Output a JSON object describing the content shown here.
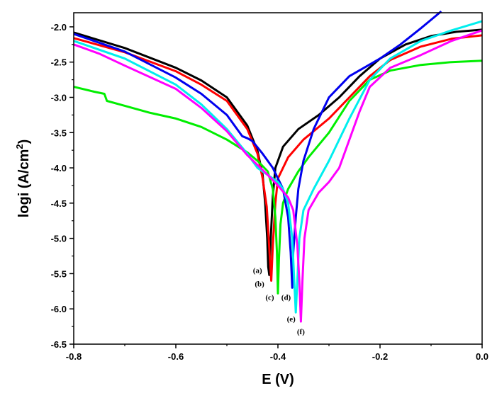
{
  "chart_data": {
    "type": "line",
    "title": "",
    "xlabel": "E (V)",
    "ylabel_main": "logi (A/cm",
    "ylabel_sup": "2",
    "ylabel_close": ")",
    "xlim": [
      -0.8,
      0.0
    ],
    "ylim": [
      -6.5,
      -1.8
    ],
    "xticks": [
      -0.8,
      -0.6,
      -0.4,
      -0.2,
      0.0
    ],
    "xtick_labels": [
      "-0.8",
      "-0.6",
      "-0.4",
      "-0.2",
      "0.0"
    ],
    "yticks": [
      -6.5,
      -6.0,
      -5.5,
      -5.0,
      -4.5,
      -4.0,
      -3.5,
      -3.0,
      -2.5,
      -2.0
    ],
    "ytick_labels": [
      "-6.5",
      "-6.0",
      "-5.5",
      "-5.0",
      "-4.5",
      "-4.0",
      "-3.5",
      "-3.0",
      "-2.5",
      "-2.0"
    ],
    "grid": false,
    "series": [
      {
        "name": "(a)",
        "color": "#000000",
        "label_at": [
          -0.44,
          -5.49
        ],
        "points": [
          [
            -0.8,
            -2.08
          ],
          [
            -0.7,
            -2.3
          ],
          [
            -0.6,
            -2.58
          ],
          [
            -0.55,
            -2.76
          ],
          [
            -0.5,
            -3.0
          ],
          [
            -0.46,
            -3.4
          ],
          [
            -0.44,
            -3.76
          ],
          [
            -0.43,
            -4.1
          ],
          [
            -0.425,
            -4.5
          ],
          [
            -0.421,
            -5.0
          ],
          [
            -0.419,
            -5.4
          ],
          [
            -0.417,
            -5.52
          ],
          [
            -0.414,
            -5.0
          ],
          [
            -0.41,
            -4.4
          ],
          [
            -0.405,
            -4.0
          ],
          [
            -0.39,
            -3.7
          ],
          [
            -0.36,
            -3.45
          ],
          [
            -0.32,
            -3.25
          ],
          [
            -0.28,
            -3.0
          ],
          [
            -0.24,
            -2.7
          ],
          [
            -0.2,
            -2.45
          ],
          [
            -0.15,
            -2.25
          ],
          [
            -0.1,
            -2.13
          ],
          [
            -0.05,
            -2.07
          ],
          [
            0.0,
            -2.04
          ]
        ]
      },
      {
        "name": "(b)",
        "color": "#ff0000",
        "label_at": [
          -0.436,
          -5.68
        ],
        "points": [
          [
            -0.8,
            -2.16
          ],
          [
            -0.7,
            -2.36
          ],
          [
            -0.6,
            -2.63
          ],
          [
            -0.55,
            -2.82
          ],
          [
            -0.5,
            -3.05
          ],
          [
            -0.46,
            -3.45
          ],
          [
            -0.44,
            -3.8
          ],
          [
            -0.43,
            -4.15
          ],
          [
            -0.422,
            -4.55
          ],
          [
            -0.418,
            -5.0
          ],
          [
            -0.415,
            -5.38
          ],
          [
            -0.413,
            -5.6
          ],
          [
            -0.41,
            -5.1
          ],
          [
            -0.405,
            -4.5
          ],
          [
            -0.4,
            -4.15
          ],
          [
            -0.38,
            -3.85
          ],
          [
            -0.35,
            -3.6
          ],
          [
            -0.3,
            -3.3
          ],
          [
            -0.26,
            -3.0
          ],
          [
            -0.22,
            -2.7
          ],
          [
            -0.18,
            -2.47
          ],
          [
            -0.12,
            -2.28
          ],
          [
            -0.06,
            -2.17
          ],
          [
            0.0,
            -2.12
          ]
        ]
      },
      {
        "name": "(c)",
        "color": "#00ee00",
        "label_at": [
          -0.416,
          -5.87
        ],
        "points": [
          [
            -0.8,
            -2.85
          ],
          [
            -0.76,
            -2.92
          ],
          [
            -0.74,
            -2.95
          ],
          [
            -0.735,
            -3.05
          ],
          [
            -0.7,
            -3.12
          ],
          [
            -0.65,
            -3.22
          ],
          [
            -0.6,
            -3.3
          ],
          [
            -0.55,
            -3.42
          ],
          [
            -0.5,
            -3.6
          ],
          [
            -0.46,
            -3.78
          ],
          [
            -0.44,
            -3.9
          ],
          [
            -0.42,
            -4.05
          ],
          [
            -0.41,
            -4.3
          ],
          [
            -0.405,
            -4.7
          ],
          [
            -0.402,
            -5.2
          ],
          [
            -0.4,
            -5.78
          ],
          [
            -0.398,
            -5.3
          ],
          [
            -0.395,
            -4.8
          ],
          [
            -0.39,
            -4.5
          ],
          [
            -0.38,
            -4.3
          ],
          [
            -0.36,
            -4.05
          ],
          [
            -0.34,
            -3.85
          ],
          [
            -0.3,
            -3.5
          ],
          [
            -0.26,
            -3.05
          ],
          [
            -0.22,
            -2.75
          ],
          [
            -0.18,
            -2.62
          ],
          [
            -0.12,
            -2.54
          ],
          [
            -0.06,
            -2.5
          ],
          [
            0.0,
            -2.48
          ]
        ]
      },
      {
        "name": "(d)",
        "color": "#0000ee",
        "label_at": [
          -0.384,
          -5.87
        ],
        "points": [
          [
            -0.8,
            -2.1
          ],
          [
            -0.7,
            -2.35
          ],
          [
            -0.6,
            -2.72
          ],
          [
            -0.55,
            -2.95
          ],
          [
            -0.5,
            -3.25
          ],
          [
            -0.47,
            -3.55
          ],
          [
            -0.46,
            -3.58
          ],
          [
            -0.45,
            -3.62
          ],
          [
            -0.43,
            -3.8
          ],
          [
            -0.41,
            -4.0
          ],
          [
            -0.39,
            -4.3
          ],
          [
            -0.38,
            -4.7
          ],
          [
            -0.375,
            -5.2
          ],
          [
            -0.372,
            -5.7
          ],
          [
            -0.37,
            -5.2
          ],
          [
            -0.365,
            -4.7
          ],
          [
            -0.36,
            -4.3
          ],
          [
            -0.35,
            -3.9
          ],
          [
            -0.33,
            -3.45
          ],
          [
            -0.3,
            -3.0
          ],
          [
            -0.26,
            -2.7
          ],
          [
            -0.2,
            -2.45
          ],
          [
            -0.16,
            -2.25
          ],
          [
            -0.12,
            -2.02
          ],
          [
            -0.08,
            -1.78
          ]
        ]
      },
      {
        "name": "(e)",
        "color": "#00eeee",
        "label_at": [
          -0.374,
          -6.18
        ],
        "points": [
          [
            -0.8,
            -2.2
          ],
          [
            -0.7,
            -2.45
          ],
          [
            -0.6,
            -2.82
          ],
          [
            -0.55,
            -3.1
          ],
          [
            -0.5,
            -3.45
          ],
          [
            -0.46,
            -3.8
          ],
          [
            -0.44,
            -4.0
          ],
          [
            -0.42,
            -4.1
          ],
          [
            -0.4,
            -4.2
          ],
          [
            -0.39,
            -4.3
          ],
          [
            -0.38,
            -4.5
          ],
          [
            -0.372,
            -5.0
          ],
          [
            -0.368,
            -5.6
          ],
          [
            -0.365,
            -6.05
          ],
          [
            -0.362,
            -5.6
          ],
          [
            -0.358,
            -5.0
          ],
          [
            -0.35,
            -4.6
          ],
          [
            -0.33,
            -4.3
          ],
          [
            -0.3,
            -3.9
          ],
          [
            -0.26,
            -3.3
          ],
          [
            -0.22,
            -2.75
          ],
          [
            -0.18,
            -2.45
          ],
          [
            -0.12,
            -2.2
          ],
          [
            -0.06,
            -2.05
          ],
          [
            0.0,
            -1.92
          ]
        ]
      },
      {
        "name": "(f)",
        "color": "#ff00ff",
        "label_at": [
          -0.355,
          -6.36
        ],
        "points": [
          [
            -0.8,
            -2.25
          ],
          [
            -0.75,
            -2.38
          ],
          [
            -0.7,
            -2.55
          ],
          [
            -0.6,
            -2.88
          ],
          [
            -0.55,
            -3.15
          ],
          [
            -0.5,
            -3.48
          ],
          [
            -0.46,
            -3.82
          ],
          [
            -0.42,
            -4.1
          ],
          [
            -0.4,
            -4.25
          ],
          [
            -0.38,
            -4.42
          ],
          [
            -0.37,
            -4.6
          ],
          [
            -0.362,
            -5.1
          ],
          [
            -0.358,
            -5.6
          ],
          [
            -0.355,
            -6.18
          ],
          [
            -0.352,
            -5.6
          ],
          [
            -0.348,
            -5.0
          ],
          [
            -0.34,
            -4.6
          ],
          [
            -0.32,
            -4.35
          ],
          [
            -0.3,
            -4.2
          ],
          [
            -0.28,
            -4.0
          ],
          [
            -0.26,
            -3.6
          ],
          [
            -0.24,
            -3.2
          ],
          [
            -0.22,
            -2.85
          ],
          [
            -0.18,
            -2.58
          ],
          [
            -0.12,
            -2.4
          ],
          [
            -0.06,
            -2.2
          ],
          [
            0.0,
            -2.05
          ]
        ]
      }
    ]
  }
}
